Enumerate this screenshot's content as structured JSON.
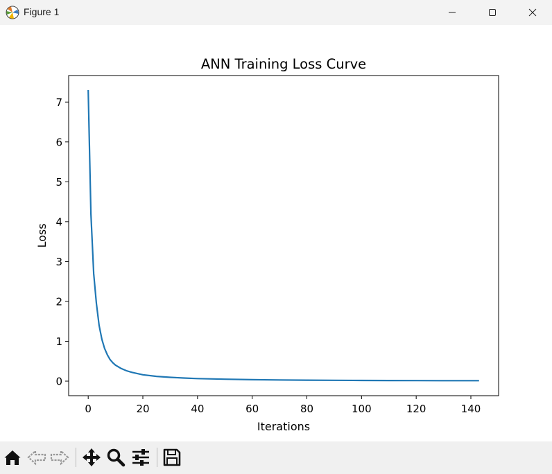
{
  "window": {
    "title": "Figure 1",
    "controls": [
      "minimize",
      "maximize",
      "close"
    ]
  },
  "toolbar": {
    "buttons": [
      {
        "name": "home",
        "icon": "home-icon"
      },
      {
        "name": "back",
        "icon": "left-arrow-icon"
      },
      {
        "name": "forward",
        "icon": "right-arrow-icon"
      },
      {
        "name": "pan",
        "icon": "move-arrows-icon"
      },
      {
        "name": "zoom",
        "icon": "magnifier-icon"
      },
      {
        "name": "configure-subplots",
        "icon": "sliders-icon"
      },
      {
        "name": "save",
        "icon": "floppy-disk-icon"
      }
    ]
  },
  "colors": {
    "line": "#1f77b4",
    "titlebar": "#f3f3f3",
    "toolbar": "#f0f0f0"
  },
  "chart_data": {
    "type": "line",
    "title": "ANN Training Loss Curve",
    "xlabel": "Iterations",
    "ylabel": "Loss",
    "xlim": [
      -7.15,
      150.15
    ],
    "ylim": [
      -0.365,
      7.665
    ],
    "xticks": [
      0,
      20,
      40,
      60,
      80,
      100,
      120,
      140
    ],
    "yticks": [
      0,
      1,
      2,
      3,
      4,
      5,
      6,
      7
    ],
    "grid": false,
    "legend": null,
    "series": [
      {
        "x": [
          0,
          1,
          2,
          3,
          4,
          5,
          6,
          7,
          8,
          9,
          10,
          12,
          14,
          16,
          18,
          20,
          25,
          30,
          35,
          40,
          50,
          60,
          70,
          80,
          90,
          100,
          110,
          120,
          130,
          140,
          143
        ],
        "y": [
          7.3,
          4.2,
          2.7,
          1.95,
          1.4,
          1.05,
          0.82,
          0.66,
          0.54,
          0.46,
          0.4,
          0.32,
          0.26,
          0.22,
          0.19,
          0.16,
          0.12,
          0.095,
          0.078,
          0.065,
          0.048,
          0.037,
          0.03,
          0.025,
          0.021,
          0.018,
          0.016,
          0.014,
          0.013,
          0.012,
          0.012
        ]
      }
    ]
  }
}
